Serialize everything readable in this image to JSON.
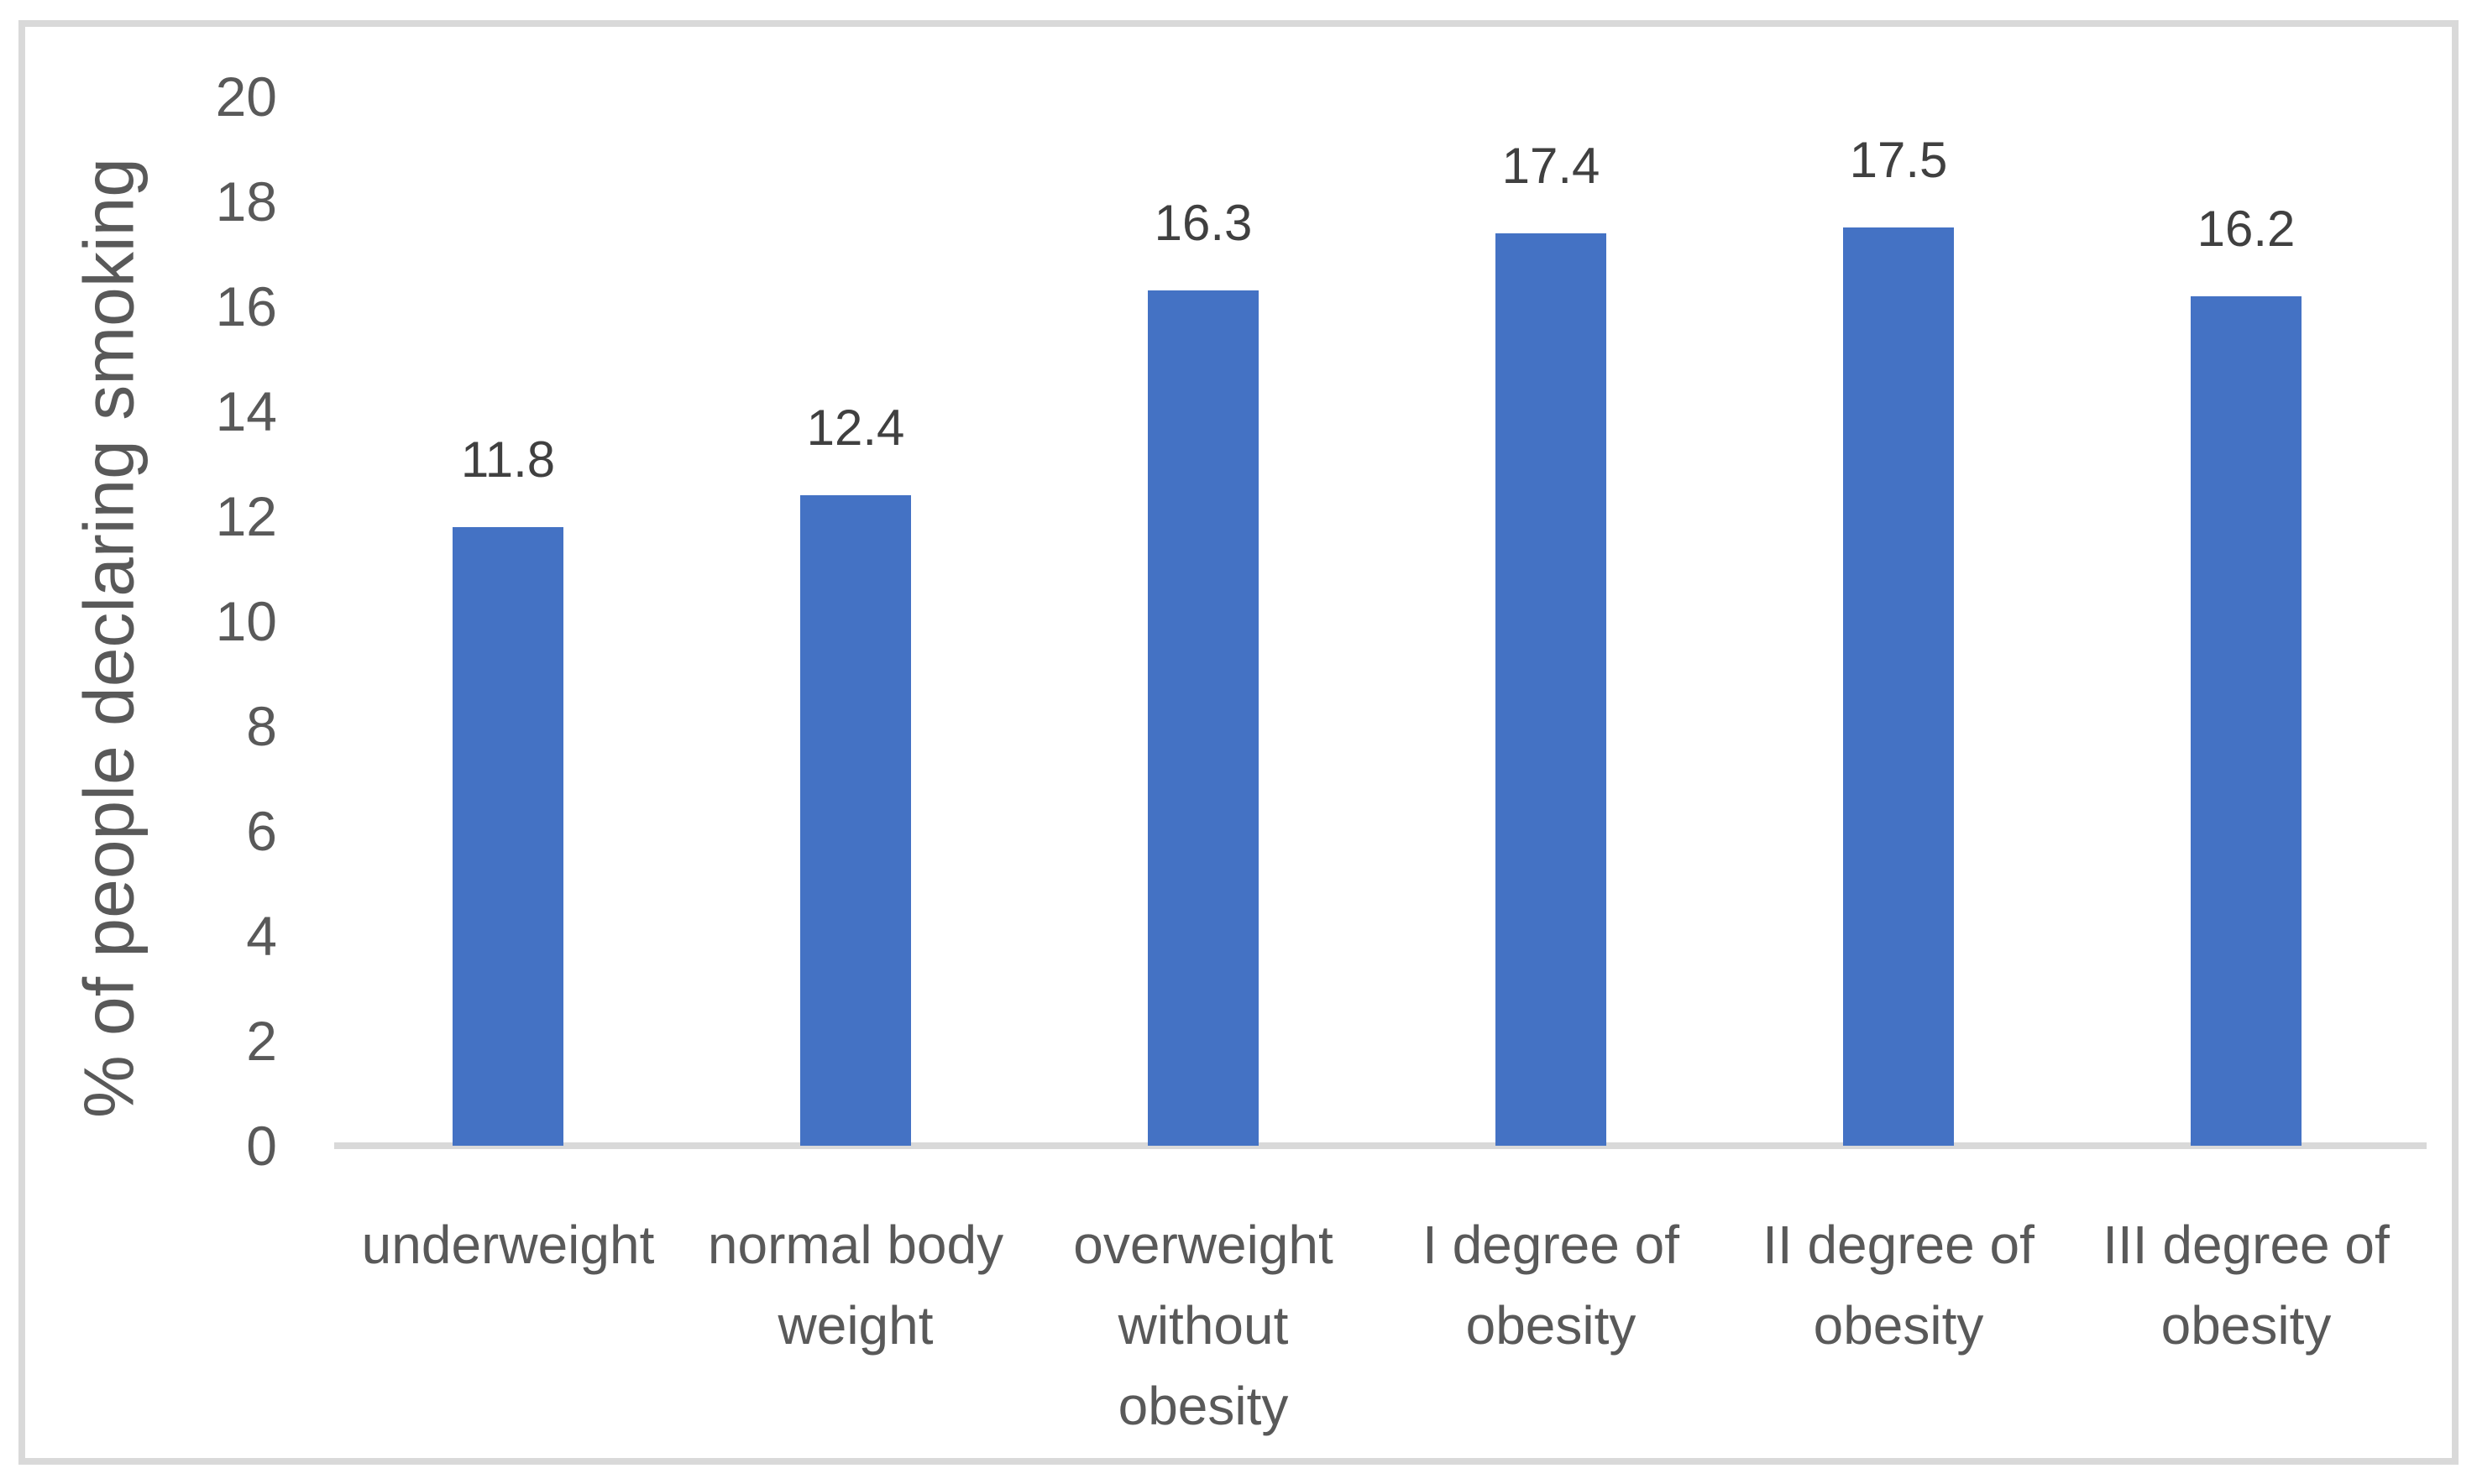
{
  "chart_data": {
    "type": "bar",
    "title": "",
    "xlabel": "",
    "ylabel": "% of people declaring smoking",
    "categories": [
      "underweight",
      "normal body weight",
      "overweight without obesity",
      "I degree of obesity",
      "II degree of obesity",
      "III degree of obesity"
    ],
    "values": [
      11.8,
      12.4,
      16.3,
      17.4,
      17.5,
      16.2
    ],
    "value_labels": [
      "11.8",
      "12.4",
      "16.3",
      "17.4",
      "17.5",
      "16.2"
    ],
    "ylim": [
      0,
      20
    ],
    "yticks": [
      0,
      2,
      4,
      6,
      8,
      10,
      12,
      14,
      16,
      18,
      20
    ],
    "grid": false,
    "legend": false,
    "colors": {
      "bar": "#4472c4",
      "axis_line": "#d9d9d9",
      "frame_border": "#d9d9d9",
      "tick_text": "#595959",
      "category_text": "#595959",
      "data_label_text": "#404040",
      "background": "#ffffff"
    }
  }
}
